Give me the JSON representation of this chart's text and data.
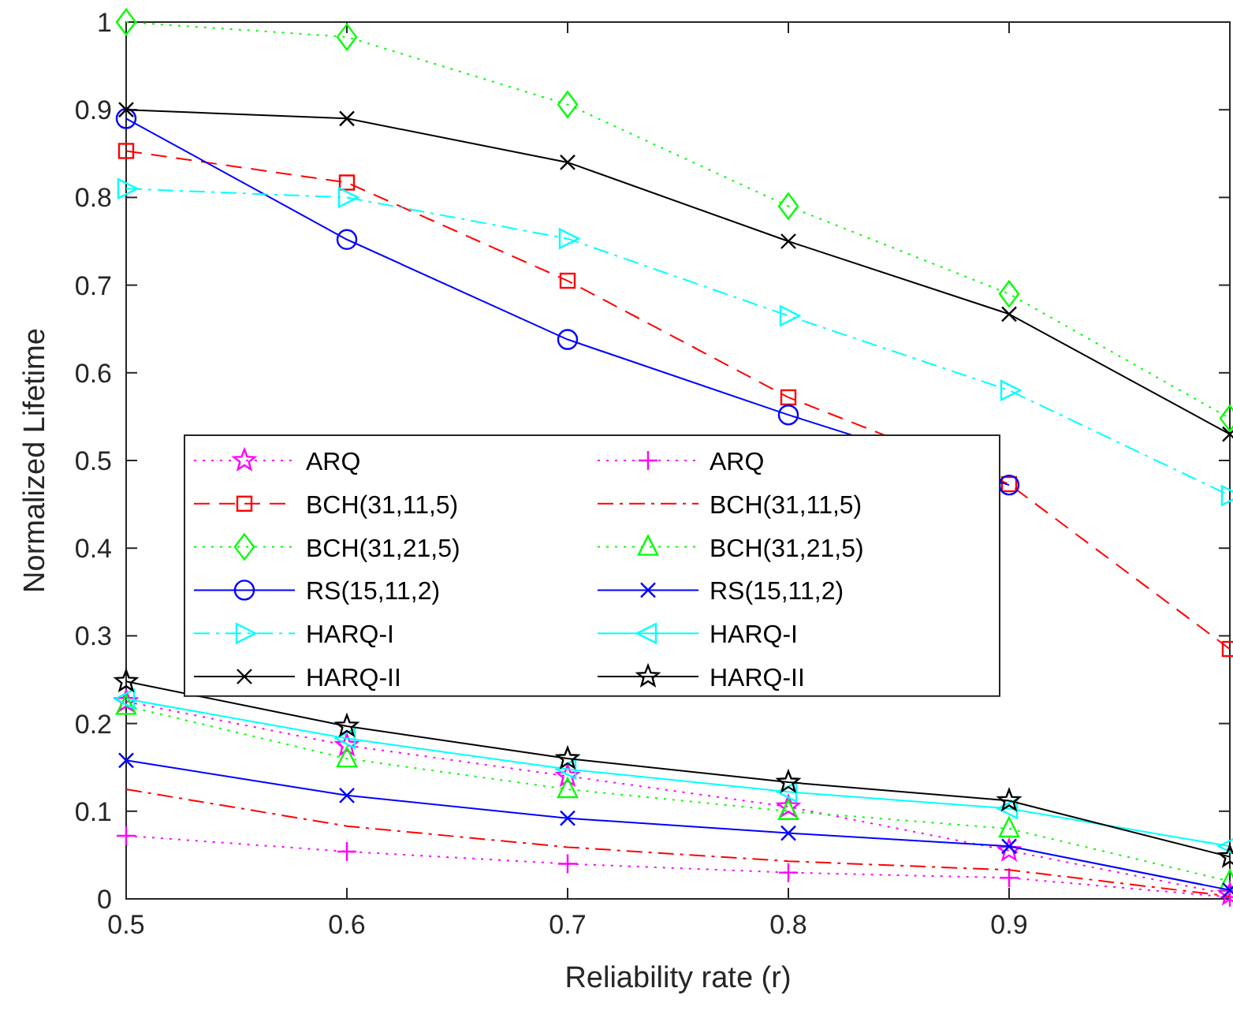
{
  "chart_data": {
    "type": "line",
    "xlabel": "Reliability rate (r)",
    "ylabel": "Normalized Lifetime",
    "x": [
      0.5,
      0.6,
      0.7,
      0.8,
      0.9,
      1.0
    ],
    "xlim": [
      0.5,
      1.0
    ],
    "xticks": [
      0.5,
      0.6,
      0.7,
      0.8,
      0.9,
      {
        "value": 1.0,
        "label": null
      }
    ],
    "ylim": [
      0,
      1
    ],
    "yticks": [
      0,
      0.1,
      0.2,
      0.3,
      0.4,
      0.5,
      0.6,
      0.7,
      0.8,
      0.9,
      1
    ],
    "grid": false,
    "legend": "left",
    "series": [
      {
        "name": "ARQ",
        "color": "#ff00ff",
        "marker": "star",
        "line_style": "dotted",
        "values": [
          0.225,
          0.175,
          0.14,
          0.105,
          0.055,
          0.005
        ]
      },
      {
        "name": "ARQ",
        "color": "#ff00ff",
        "marker": "plus",
        "line_style": "dotted",
        "values": [
          0.072,
          0.054,
          0.04,
          0.03,
          0.024,
          0.002
        ]
      },
      {
        "name": "BCH(31,11,5)",
        "color": "#ff0000",
        "marker": "square",
        "line_style": "dashed",
        "values": [
          0.853,
          0.817,
          0.705,
          0.572,
          0.473,
          0.285
        ]
      },
      {
        "name": "BCH(31,11,5)",
        "color": "#ff0000",
        "marker": "none",
        "line_style": "dashdot",
        "values": [
          0.125,
          0.083,
          0.059,
          0.043,
          0.033,
          0.003
        ]
      },
      {
        "name": "BCH(31,21,5)",
        "color": "#00ff00",
        "marker": "diamond",
        "line_style": "dotted",
        "values": [
          1.0,
          0.983,
          0.906,
          0.79,
          0.69,
          0.548
        ]
      },
      {
        "name": "BCH(31,21,5)",
        "color": "#00ff00",
        "marker": "triangle",
        "line_style": "dotted",
        "values": [
          0.22,
          0.16,
          0.125,
          0.1,
          0.08,
          0.02
        ]
      },
      {
        "name": "RS(15,11,2)",
        "color": "#0000ff",
        "marker": "circle",
        "line_style": "solid",
        "values": [
          0.89,
          0.752,
          0.638,
          0.552,
          0.472,
          null
        ]
      },
      {
        "name": "RS(15,11,2)",
        "color": "#0000ff",
        "marker": "cross",
        "line_style": "solid",
        "values": [
          0.158,
          0.118,
          0.092,
          0.075,
          0.06,
          0.01
        ]
      },
      {
        "name": "HARQ-I",
        "color": "#00ffff",
        "marker": "triangle-right",
        "line_style": "dashdot",
        "values": [
          0.81,
          0.8,
          0.753,
          0.665,
          0.58,
          0.46
        ]
      },
      {
        "name": "HARQ-I",
        "color": "#00ffff",
        "marker": "triangle-left",
        "line_style": "solid",
        "values": [
          0.228,
          0.183,
          0.148,
          0.122,
          0.103,
          0.06
        ]
      },
      {
        "name": "HARQ-II",
        "color": "#000000",
        "marker": "cross",
        "line_style": "solid",
        "values": [
          0.9,
          0.89,
          0.84,
          0.75,
          0.667,
          0.53
        ]
      },
      {
        "name": "HARQ-II",
        "color": "#000000",
        "marker": "star",
        "line_style": "solid",
        "values": [
          0.248,
          0.197,
          0.16,
          0.133,
          0.112,
          0.048
        ]
      }
    ]
  }
}
